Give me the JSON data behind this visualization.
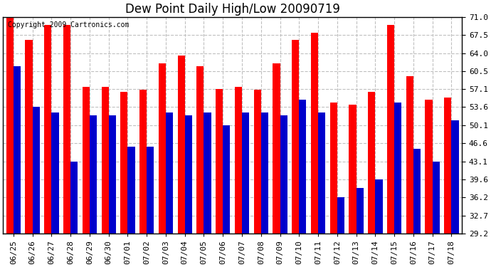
{
  "title": "Dew Point Daily High/Low 20090719",
  "copyright": "Copyright 2009 Cartronics.com",
  "dates": [
    "06/25",
    "06/26",
    "06/27",
    "06/28",
    "06/29",
    "06/30",
    "07/01",
    "07/02",
    "07/03",
    "07/04",
    "07/05",
    "07/06",
    "07/07",
    "07/08",
    "07/09",
    "07/10",
    "07/11",
    "07/12",
    "07/13",
    "07/14",
    "07/15",
    "07/16",
    "07/17",
    "07/18"
  ],
  "highs": [
    71.0,
    66.5,
    69.5,
    69.5,
    57.5,
    57.5,
    56.5,
    57.0,
    62.0,
    63.5,
    61.5,
    57.1,
    57.5,
    57.0,
    62.0,
    66.5,
    68.0,
    54.5,
    54.0,
    56.5,
    69.5,
    59.5,
    55.0,
    55.5
  ],
  "lows": [
    61.5,
    53.6,
    52.5,
    43.1,
    52.0,
    52.0,
    46.0,
    46.0,
    52.5,
    52.0,
    52.5,
    50.1,
    52.5,
    52.5,
    52.0,
    55.0,
    52.5,
    36.2,
    38.0,
    39.6,
    54.5,
    45.5,
    43.1,
    51.0
  ],
  "high_color": "#ff0000",
  "low_color": "#0000cc",
  "bg_color": "#ffffff",
  "plot_bg_color": "#ffffff",
  "grid_color": "#c0c0c0",
  "yticks": [
    29.2,
    32.7,
    36.2,
    39.6,
    43.1,
    46.6,
    50.1,
    53.6,
    57.1,
    60.5,
    64.0,
    67.5,
    71.0
  ],
  "ymin": 29.2,
  "ymax": 71.0,
  "title_fontsize": 12,
  "tick_fontsize": 8,
  "copyright_fontsize": 7
}
